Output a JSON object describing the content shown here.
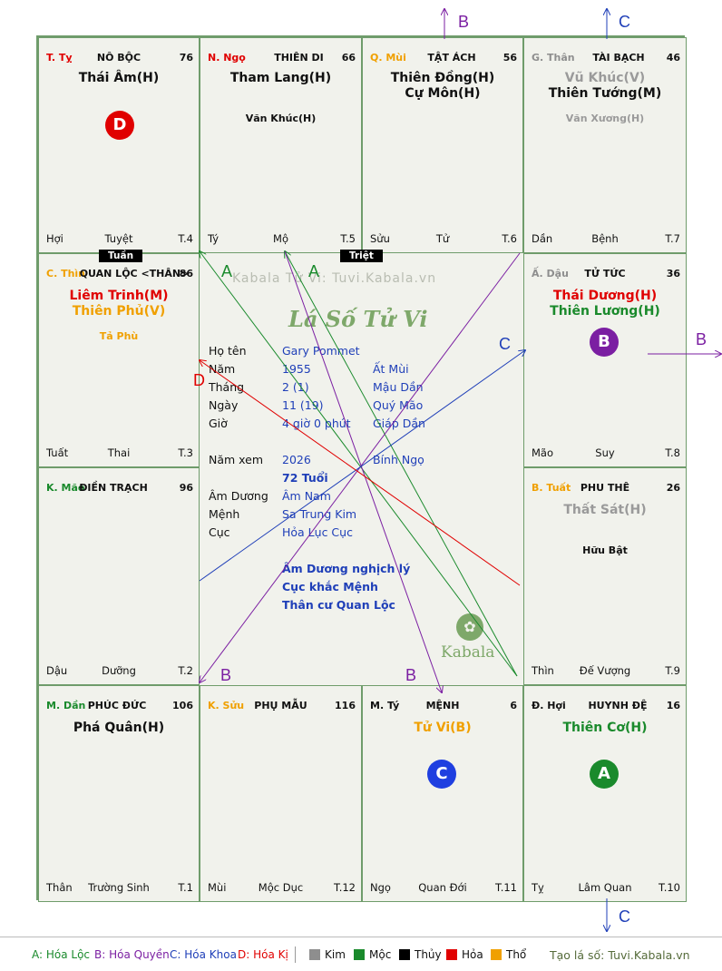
{
  "colors": {
    "kim": "#8e8e8e",
    "moc": "#1a8a2c",
    "thuy": "#000000",
    "hoa": "#e00000",
    "tho": "#f0a000",
    "blue": "#1f3fb8",
    "purple": "#7b1fa2",
    "green_a": "#1a8a2c"
  },
  "cells": {
    "ty": {
      "stem": "T. Tỵ",
      "palace": "NÔ BỘC",
      "num": "76",
      "majors": [
        "Thái Âm(H)"
      ],
      "minors": [],
      "bottom_left": "Hợi",
      "bottom_center": "Tuyệt",
      "bottom_right": "T.4",
      "badge": "D"
    },
    "ngo": {
      "stem": "N. Ngọ",
      "palace": "THIÊN DI",
      "num": "66",
      "majors": [
        "Tham Lang(H)"
      ],
      "minors": [
        "Văn Khúc(H)"
      ],
      "bottom_left": "Tý",
      "bottom_center": "Mộ",
      "bottom_right": "T.5"
    },
    "mui": {
      "stem": "Q. Mùi",
      "palace": "TẬT ÁCH",
      "num": "56",
      "majors": [
        "Thiên Đồng(H)",
        "Cự Môn(H)"
      ],
      "minors": [],
      "bottom_left": "Sửu",
      "bottom_center": "Tử",
      "bottom_right": "T.6"
    },
    "than": {
      "stem": "G. Thân",
      "palace": "TÀI BẠCH",
      "num": "46",
      "majors": [
        "Vũ Khúc(V)",
        "Thiên Tướng(M)"
      ],
      "minors": [
        "Văn Xương(H)"
      ],
      "bottom_left": "Dần",
      "bottom_center": "Bệnh",
      "bottom_right": "T.7"
    },
    "thin": {
      "stem": "C. Thìn",
      "palace": "QUAN LỘC <THÂN>",
      "num": "86",
      "majors": [
        "Liêm Trinh(M)",
        "Thiên Phủ(V)"
      ],
      "minors": [
        "Tả Phù"
      ],
      "bottom_left": "Tuất",
      "bottom_center": "Thai",
      "bottom_right": "T.3"
    },
    "dau": {
      "stem": "Ấ. Dậu",
      "palace": "TỬ TỨC",
      "num": "36",
      "majors": [
        "Thái Dương(H)",
        "Thiên Lương(H)"
      ],
      "minors": [],
      "bottom_left": "Mão",
      "bottom_center": "Suy",
      "bottom_right": "T.8",
      "badge": "B"
    },
    "mao": {
      "stem": "K. Mão",
      "palace": "ĐIỀN TRẠCH",
      "num": "96",
      "majors": [],
      "minors": [],
      "bottom_left": "Dậu",
      "bottom_center": "Dưỡng",
      "bottom_right": "T.2"
    },
    "tuat": {
      "stem": "B. Tuất",
      "palace": "PHU THÊ",
      "num": "26",
      "majors": [
        "Thất Sát(H)"
      ],
      "minors": [
        "Hữu Bật"
      ],
      "bottom_left": "Thìn",
      "bottom_center": "Đế Vượng",
      "bottom_right": "T.9"
    },
    "dan": {
      "stem": "M. Dần",
      "palace": "PHÚC ĐỨC",
      "num": "106",
      "majors": [
        "Phá Quân(H)"
      ],
      "minors": [],
      "bottom_left": "Thân",
      "bottom_center": "Trường Sinh",
      "bottom_right": "T.1"
    },
    "suu": {
      "stem": "K. Sửu",
      "palace": "PHỤ MẪU",
      "num": "116",
      "majors": [],
      "minors": [],
      "bottom_left": "Mùi",
      "bottom_center": "Mộc Dục",
      "bottom_right": "T.12"
    },
    "tyy": {
      "stem": "M. Tý",
      "palace": "MỆNH",
      "num": "6",
      "majors": [
        "Tử Vi(B)"
      ],
      "minors": [],
      "bottom_left": "Ngọ",
      "bottom_center": "Quan Đới",
      "bottom_right": "T.11",
      "badge": "C"
    },
    "hoi": {
      "stem": "Đ. Hợi",
      "palace": "HUYNH ĐỆ",
      "num": "16",
      "majors": [
        "Thiên Cơ(H)"
      ],
      "minors": [],
      "bottom_left": "Tỵ",
      "bottom_center": "Lâm Quan",
      "bottom_right": "T.10",
      "badge": "A"
    }
  },
  "tags": {
    "tuan": "Tuần",
    "triet": "Triệt"
  },
  "center": {
    "watermark": "Kabala Tử Vi: Tuvi.Kabala.vn",
    "logo_script": "Lá Số Tử Vi",
    "brand": "Kabala",
    "rows": [
      {
        "label": "Họ tên",
        "value": "Gary Pommet",
        "extra": ""
      },
      {
        "label": "Năm",
        "value": "1955",
        "extra": "Ất Mùi"
      },
      {
        "label": "Tháng",
        "value": "2  (1)",
        "extra": "Mậu Dần"
      },
      {
        "label": "Ngày",
        "value": "11  (19)",
        "extra": "Quý Mão"
      },
      {
        "label": "Giờ",
        "value": "4 giờ 0 phút",
        "extra": "Giáp Dần"
      },
      {
        "label": "Năm xem",
        "value": "2026",
        "extra": "Bính Ngọ"
      },
      {
        "label": "",
        "value": "72 Tuổi",
        "extra": ""
      },
      {
        "label": "Âm Dương",
        "value": "Âm Nam",
        "extra": ""
      },
      {
        "label": "Mệnh",
        "value": "Sa Trung Kim",
        "extra": ""
      },
      {
        "label": "Cục",
        "value": "Hỏa Lục Cục",
        "extra": ""
      }
    ],
    "notes": [
      "Âm Dương nghịch lý",
      "Cục khắc Mệnh",
      "Thân cư Quan Lộc"
    ]
  },
  "arrow_labels": {
    "A": "A",
    "B": "B",
    "C": "C",
    "D": "D"
  },
  "legend": {
    "a": "A: Hóa Lộc",
    "b": "B: Hóa Quyền",
    "c": "C: Hóa Khoa",
    "d": "D: Hóa Kị",
    "kim": "Kim",
    "moc": "Mộc",
    "thuy": "Thủy",
    "hoa": "Hỏa",
    "tho": "Thổ",
    "site": "Tạo lá số: Tuvi.Kabala.vn"
  }
}
